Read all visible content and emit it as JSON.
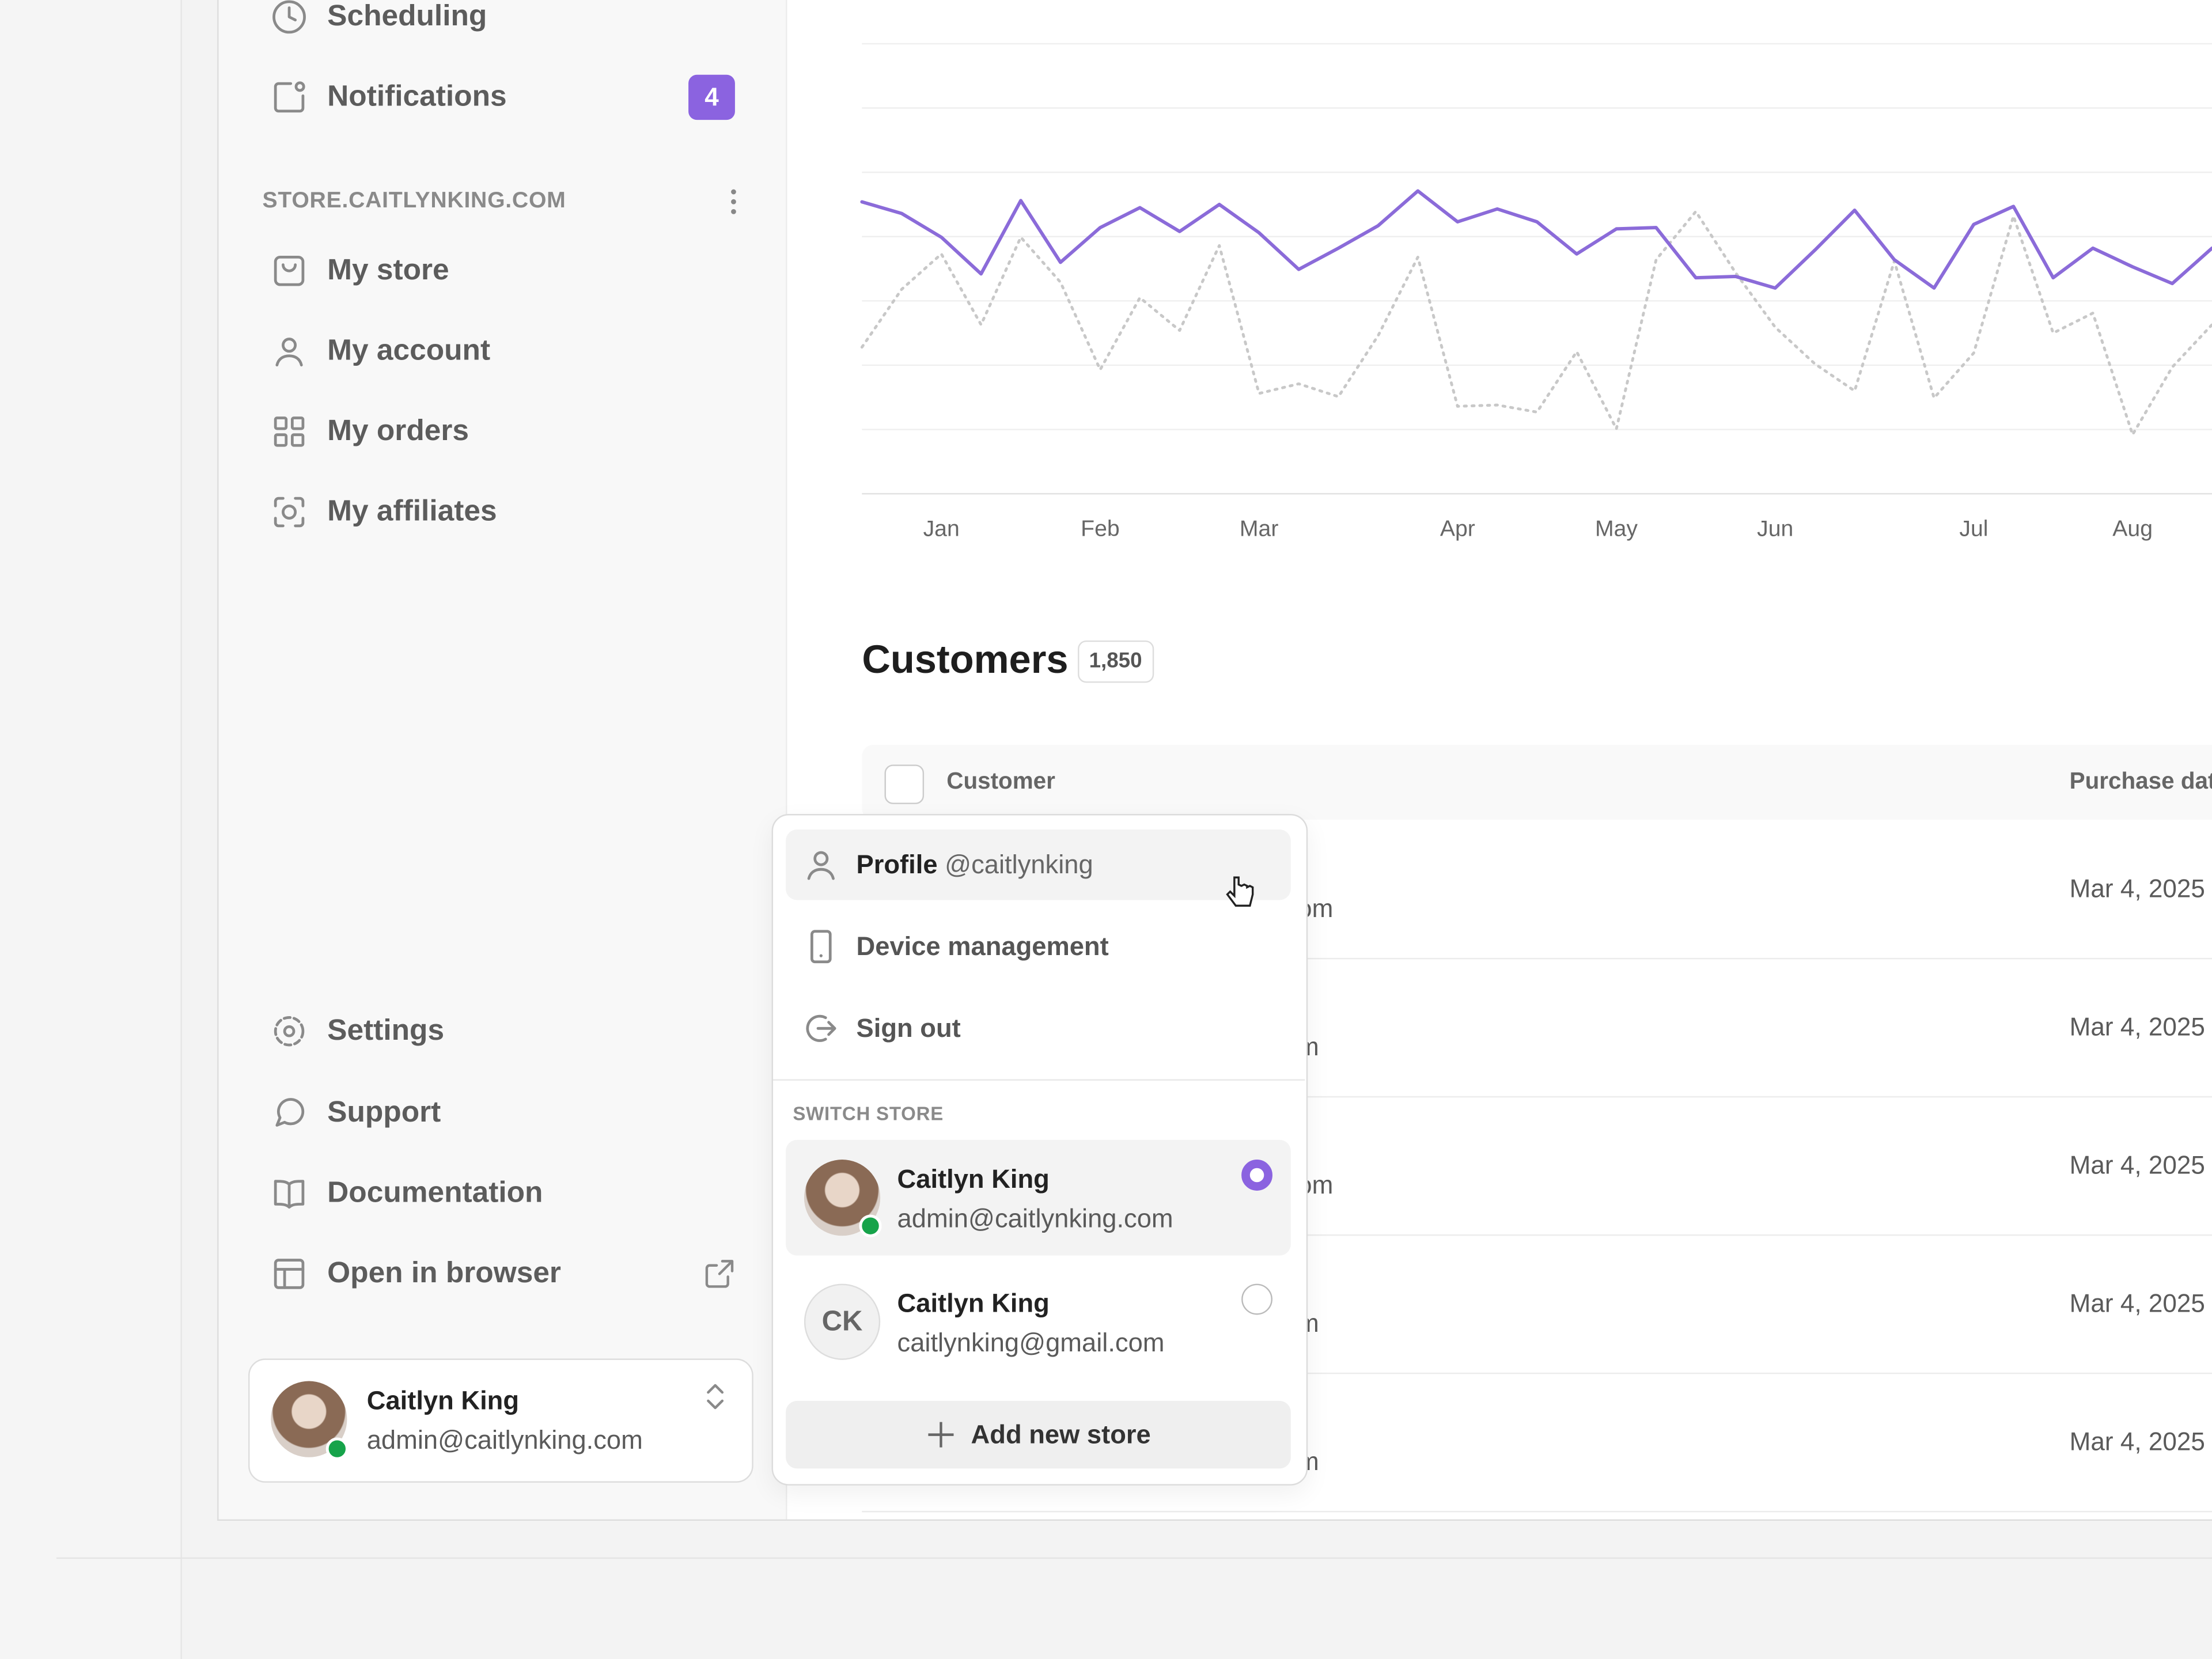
{
  "sidebar": {
    "nav": [
      "Scheduling",
      "Notifications"
    ],
    "notifications_badge": 4,
    "store_section": "STORE.CAITLYNKING.COM",
    "store_nav": [
      "My store",
      "My account",
      "My orders",
      "My affiliates"
    ],
    "footer_nav": [
      "Settings",
      "Support",
      "Documentation",
      "Open in browser"
    ],
    "user": {
      "name": "Caitlyn King",
      "email": "admin@caitlynking.com"
    }
  },
  "chart": {
    "type": "line",
    "categories": [
      null,
      null,
      "Jan",
      null,
      null,
      null,
      "Feb",
      null,
      null,
      null,
      "Mar",
      null,
      null,
      null,
      null,
      "Apr",
      null,
      null,
      null,
      "May",
      null,
      null,
      null,
      "Jun",
      null,
      null,
      null,
      null,
      "Jul",
      null,
      null,
      null,
      "Aug",
      null,
      null
    ],
    "series": [
      {
        "color": "#8b6bd9",
        "style": "solid",
        "values": [
          4.54,
          4.36,
          3.99,
          3.42,
          4.56,
          3.6,
          4.14,
          4.45,
          4.08,
          4.5,
          4.06,
          3.49,
          3.82,
          4.17,
          4.71,
          4.23,
          4.43,
          4.23,
          3.73,
          4.12,
          4.14,
          3.36,
          3.38,
          3.2,
          3.79,
          4.41,
          3.64,
          3.2,
          4.19,
          4.47,
          3.36,
          3.82,
          3.53,
          3.27,
          3.82
        ]
      },
      {
        "color": "#c8c8c8",
        "style": "dotted",
        "values": [
          2.28,
          3.18,
          3.73,
          2.63,
          3.99,
          3.29,
          1.93,
          3.05,
          2.54,
          3.86,
          1.56,
          1.71,
          1.51,
          2.46,
          3.68,
          1.36,
          1.38,
          1.27,
          2.21,
          1.01,
          3.64,
          4.39,
          3.44,
          2.59,
          2.02,
          1.6,
          3.62,
          1.49,
          2.19,
          4.32,
          2.5,
          2.81,
          0.92,
          1.97,
          2.63
        ]
      }
    ],
    "ylim": [
      0,
      7
    ],
    "grid": true
  },
  "customers": {
    "title": "Customers",
    "count": "1,850",
    "columns": [
      "Customer",
      "Purchase date"
    ],
    "rows": [
      [
        "om",
        "Mar 4, 2025"
      ],
      [
        "m",
        "Mar 4, 2025"
      ],
      [
        "om",
        "Mar 4, 2025"
      ],
      [
        "m",
        "Mar 4, 2025"
      ],
      [
        "m",
        "Mar 4, 2025"
      ]
    ]
  },
  "menu": {
    "profile": "Profile",
    "handle": "@caitlynking",
    "items": [
      "Device management",
      "Sign out"
    ],
    "switch_label": "SWITCH STORE",
    "stores": [
      {
        "name": "Caitlyn King",
        "email": "admin@caitlynking.com",
        "selected": true
      },
      {
        "initials": "CK",
        "name": "Caitlyn King",
        "email": "caitlynking@gmail.com",
        "selected": false
      }
    ],
    "add": "Add new store"
  }
}
